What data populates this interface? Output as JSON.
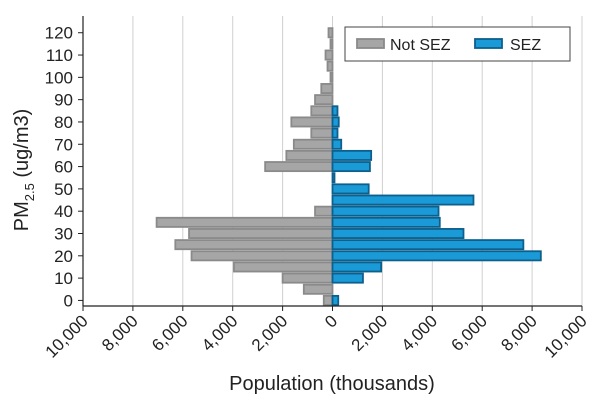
{
  "chart_data": {
    "type": "bar",
    "orientation": "horizontal-population-pyramid",
    "ylabel_main": "PM",
    "ylabel_sub": "2.5",
    "ylabel_rest": " (ug/m3)",
    "xlabel": "Population (thousands)",
    "xlim": [
      -10000,
      10000
    ],
    "ylim": [
      -2.5,
      127.5
    ],
    "x_tick_values": [
      -10000,
      -8000,
      -6000,
      -4000,
      -2000,
      0,
      2000,
      4000,
      6000,
      8000,
      10000
    ],
    "x_tick_labels": [
      "10,000",
      "8,000",
      "6,000",
      "4,000",
      "2,000",
      "0",
      "2,000",
      "4,000",
      "6,000",
      "8,000",
      "10,000"
    ],
    "y_tick_values": [
      0,
      10,
      20,
      30,
      40,
      50,
      60,
      70,
      80,
      90,
      100,
      110,
      120
    ],
    "y_tick_labels": [
      "0",
      "10",
      "20",
      "30",
      "40",
      "50",
      "60",
      "70",
      "80",
      "90",
      "100",
      "110",
      "120"
    ],
    "grid": "vertical",
    "legend_position": "top-right",
    "bin_width": 5,
    "bins": [
      0,
      5,
      10,
      15,
      20,
      25,
      30,
      35,
      40,
      45,
      50,
      55,
      60,
      65,
      70,
      75,
      80,
      85,
      90,
      95,
      100,
      105,
      110,
      115,
      120,
      125
    ],
    "series": [
      {
        "name": "Not SEZ",
        "side": "left",
        "color": "#a6a6a6",
        "stroke": "#8a8a8a",
        "values": [
          350,
          1150,
          2000,
          3950,
          5650,
          6300,
          5750,
          7050,
          700,
          0,
          0,
          0,
          2700,
          1850,
          1550,
          850,
          1650,
          850,
          700,
          450,
          80,
          200,
          280,
          80,
          160,
          0
        ]
      },
      {
        "name": "SEZ",
        "side": "right",
        "color": "#1a9bd7",
        "stroke": "#0d5f8c",
        "values": [
          230,
          0,
          1220,
          1950,
          8350,
          7650,
          5250,
          4300,
          4250,
          5650,
          1450,
          80,
          1500,
          1550,
          350,
          200,
          250,
          200,
          0,
          0,
          0,
          0,
          0,
          0,
          0,
          0
        ]
      }
    ]
  }
}
